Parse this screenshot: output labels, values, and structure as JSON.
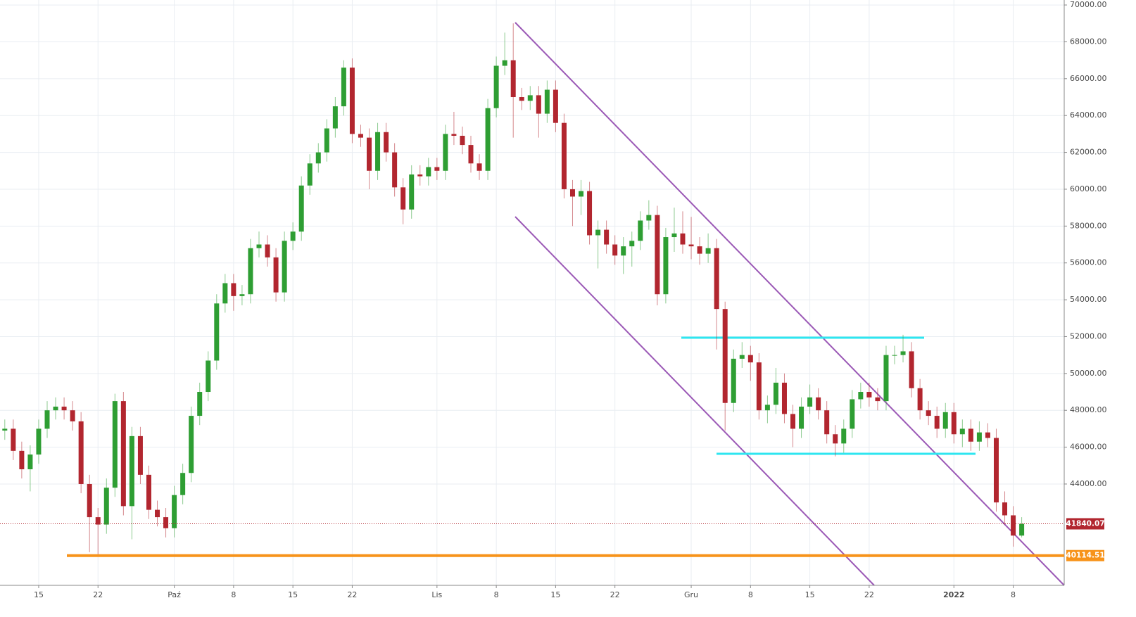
{
  "chart_data": {
    "type": "candlestick",
    "categories": [
      null,
      null,
      null,
      null,
      "15",
      null,
      null,
      null,
      null,
      null,
      null,
      "22",
      null,
      null,
      null,
      null,
      null,
      null,
      null,
      null,
      "Paź",
      null,
      null,
      null,
      null,
      null,
      null,
      "8",
      null,
      null,
      null,
      null,
      null,
      null,
      "15",
      null,
      null,
      null,
      null,
      null,
      null,
      "22",
      null,
      null,
      null,
      null,
      null,
      null,
      null,
      null,
      null,
      "Lis",
      null,
      null,
      null,
      null,
      null,
      null,
      "8",
      null,
      null,
      null,
      null,
      null,
      null,
      "15",
      null,
      null,
      null,
      null,
      null,
      null,
      "22",
      null,
      null,
      null,
      null,
      null,
      null,
      null,
      null,
      "Gru",
      null,
      null,
      null,
      null,
      null,
      null,
      "8",
      null,
      null,
      null,
      null,
      null,
      null,
      "15",
      null,
      null,
      null,
      null,
      null,
      null,
      "22",
      null,
      null,
      null,
      null,
      null,
      null,
      null,
      null,
      null,
      "2022",
      null,
      null,
      null,
      null,
      null,
      null,
      "8",
      null
    ],
    "open": [
      46900,
      47000,
      45800,
      44800,
      45600,
      47000,
      48000,
      48200,
      48000,
      47400,
      44000,
      42200,
      41800,
      43800,
      48500,
      42800,
      46600,
      44500,
      42600,
      42200,
      41600,
      43400,
      44600,
      47700,
      49000,
      50700,
      53800,
      54900,
      54200,
      54300,
      56800,
      57000,
      56300,
      54400,
      57200,
      57700,
      60200,
      61400,
      62000,
      63300,
      64500,
      66600,
      63000,
      62800,
      61000,
      63100,
      62000,
      60100,
      58900,
      60800,
      60700,
      61200,
      61000,
      63000,
      62900,
      62400,
      61400,
      61000,
      64400,
      66700,
      67000,
      65000,
      64800,
      65100,
      64100,
      65400,
      63600,
      60000,
      59600,
      59900,
      57500,
      57800,
      57000,
      56400,
      56900,
      57200,
      58300,
      58600,
      54300,
      57400,
      57600,
      57000,
      56900,
      56500,
      56800,
      53500,
      48400,
      50800,
      51000,
      50600,
      48000,
      48300,
      49500,
      47800,
      47000,
      48200,
      48700,
      48000,
      46700,
      46200,
      47000,
      48600,
      49000,
      48700,
      48500,
      51000,
      51000,
      51200,
      49200,
      48000,
      47700,
      47000,
      47900,
      46700,
      47000,
      46300,
      46800,
      46500,
      43000,
      42300,
      41200
    ],
    "high": [
      47500,
      47500,
      46300,
      46100,
      47500,
      48500,
      48700,
      48700,
      48500,
      47900,
      44500,
      42700,
      44300,
      48900,
      49000,
      47100,
      47100,
      45000,
      43100,
      42700,
      43900,
      45100,
      48200,
      49500,
      51200,
      54300,
      55400,
      55400,
      54800,
      57300,
      57700,
      57500,
      56800,
      57700,
      58200,
      60700,
      61900,
      62500,
      63800,
      65000,
      67000,
      67100,
      63500,
      63300,
      63600,
      63600,
      62500,
      60600,
      61300,
      61300,
      61700,
      61700,
      63500,
      64200,
      63400,
      62900,
      61900,
      64900,
      67200,
      68500,
      69000,
      65500,
      65600,
      65600,
      65900,
      65900,
      64100,
      60500,
      60500,
      60400,
      58300,
      58300,
      57500,
      57400,
      57700,
      58800,
      59400,
      59100,
      57900,
      59000,
      58800,
      58500,
      57400,
      57600,
      57300,
      53900,
      51300,
      51700,
      51500,
      51100,
      48800,
      50300,
      50000,
      48300,
      48700,
      49400,
      49200,
      48500,
      47200,
      47500,
      49100,
      49500,
      49500,
      49200,
      51500,
      51500,
      52100,
      51700,
      49700,
      48500,
      48200,
      48400,
      48400,
      47500,
      47500,
      47400,
      47300,
      47000,
      43600,
      42800,
      42200
    ],
    "low": [
      46400,
      45300,
      44300,
      43600,
      45100,
      46500,
      47500,
      47500,
      46900,
      43500,
      40300,
      40100,
      41300,
      43300,
      42300,
      41000,
      44000,
      42100,
      41700,
      41100,
      41100,
      42900,
      44100,
      47200,
      48500,
      50200,
      53300,
      53400,
      53700,
      53800,
      56300,
      55800,
      53900,
      53900,
      56700,
      57200,
      59700,
      60900,
      61500,
      62800,
      64000,
      62500,
      62300,
      60000,
      60500,
      61500,
      59600,
      58100,
      58400,
      60200,
      60200,
      60500,
      60500,
      62400,
      61900,
      60900,
      60500,
      60500,
      63900,
      66200,
      62800,
      64300,
      64300,
      62800,
      63600,
      63100,
      59500,
      58000,
      58600,
      57000,
      55700,
      56500,
      55900,
      55400,
      55800,
      56700,
      57800,
      53700,
      53800,
      56600,
      56500,
      56200,
      55900,
      56000,
      51300,
      46900,
      47900,
      50300,
      49600,
      47500,
      47300,
      47800,
      47300,
      46000,
      46500,
      47800,
      47500,
      46200,
      45500,
      45700,
      46500,
      48100,
      48200,
      48000,
      48000,
      50500,
      50600,
      48700,
      47500,
      47200,
      46500,
      46500,
      46200,
      46000,
      45800,
      45800,
      46000,
      42500,
      41800,
      40600,
      41100
    ],
    "close": [
      47000,
      45800,
      44800,
      45600,
      47000,
      48000,
      48200,
      48000,
      47400,
      44000,
      42200,
      41800,
      43800,
      48500,
      42800,
      46600,
      44500,
      42600,
      42200,
      41600,
      43400,
      44600,
      47700,
      49000,
      50700,
      53800,
      54900,
      54200,
      54300,
      56800,
      57000,
      56300,
      54400,
      57200,
      57700,
      60200,
      61400,
      62000,
      63300,
      64500,
      66600,
      63000,
      62800,
      61000,
      63100,
      62000,
      60100,
      58900,
      60800,
      60700,
      61200,
      61000,
      63000,
      62900,
      62400,
      61400,
      61000,
      64400,
      66700,
      67000,
      65000,
      64800,
      65100,
      64100,
      65400,
      63600,
      60000,
      59600,
      59900,
      57500,
      57800,
      57000,
      56400,
      56900,
      57200,
      58300,
      58600,
      54300,
      57400,
      57600,
      57000,
      56900,
      56500,
      56800,
      53500,
      48400,
      50800,
      51000,
      50600,
      48000,
      48300,
      49500,
      47800,
      47000,
      48200,
      48700,
      48000,
      46700,
      46200,
      47000,
      48600,
      49000,
      48700,
      48500,
      51000,
      51000,
      51200,
      49200,
      48000,
      47700,
      47000,
      47900,
      46700,
      47000,
      46300,
      46800,
      46500,
      43000,
      42300,
      41200,
      41840.07
    ],
    "up_color": "#2e9e33",
    "down_color": "#b2262f",
    "ylim": [
      38500,
      70270
    ],
    "yticks": [
      {
        "value": 44000,
        "label": "44000.00"
      },
      {
        "value": 46000,
        "label": "46000.00"
      },
      {
        "value": 48000,
        "label": "48000.00"
      },
      {
        "value": 50000,
        "label": "50000.00"
      },
      {
        "value": 52000,
        "label": "52000.00"
      },
      {
        "value": 54000,
        "label": "54000.00"
      },
      {
        "value": 56000,
        "label": "56000.00"
      },
      {
        "value": 58000,
        "label": "58000.00"
      },
      {
        "value": 60000,
        "label": "60000.00"
      },
      {
        "value": 62000,
        "label": "62000.00"
      },
      {
        "value": 64000,
        "label": "64000.00"
      },
      {
        "value": 66000,
        "label": "66000.00"
      },
      {
        "value": 68000,
        "label": "68000.00"
      },
      {
        "value": 70000,
        "label": "70000.00"
      }
    ],
    "grid": true,
    "price_lines": [
      {
        "value": 41840.07,
        "color": "#b2262f"
      },
      {
        "value": 40114.51,
        "color": "#f7931a"
      }
    ]
  }
}
